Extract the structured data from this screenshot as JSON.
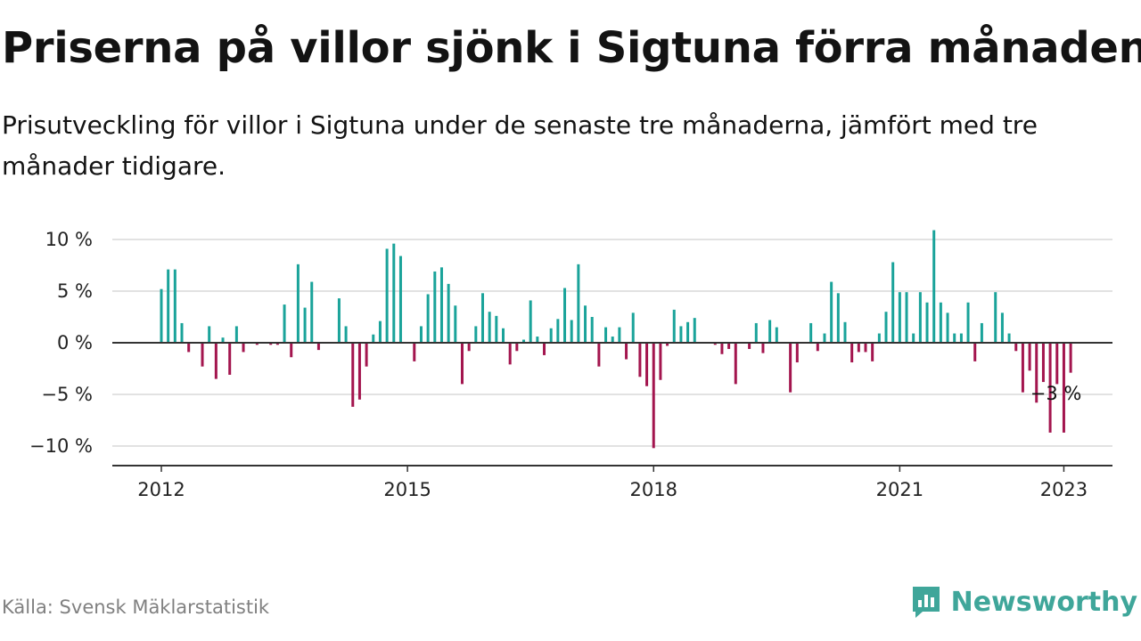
{
  "header": {
    "title": "Priserna på villor sjönk i Sigtuna förra månaden",
    "subtitle": "Prisutveckling för villor i Sigtuna under de senaste tre månaderna, jämfört med tre månader tidigare."
  },
  "footer": {
    "source": "Källa: Svensk Mäklarstatistik",
    "brand": "Newsworthy"
  },
  "colors": {
    "positive": "#1aa39a",
    "negative": "#a3154e",
    "grid": "#d9d9d9",
    "zero_line": "#333333",
    "brand": "#3fa69a"
  },
  "chart_data": {
    "type": "bar",
    "ylim": [
      -12,
      12
    ],
    "yticks": [
      {
        "value": 10,
        "label": "10 %"
      },
      {
        "value": 5,
        "label": "5 %"
      },
      {
        "value": 0,
        "label": "0 %"
      },
      {
        "value": -5,
        "label": "−5 %"
      },
      {
        "value": -10,
        "label": "−10 %"
      }
    ],
    "xticks": [
      "2012",
      "2015",
      "2018",
      "2021",
      "2023"
    ],
    "start": "2012-01",
    "annotation": {
      "text": "−3 %",
      "date": "2022-12",
      "value": -3
    },
    "series": [
      {
        "values": [
          5.2,
          7.1,
          7.1,
          1.9,
          -0.9,
          0,
          -2.3,
          1.6,
          -3.5,
          0.5,
          -3.1,
          1.6,
          -0.9,
          0,
          -0.2,
          0,
          -0.2,
          -0.2,
          3.7,
          -1.4,
          7.6,
          3.4,
          5.9,
          -0.7,
          0,
          0,
          4.3,
          1.6,
          -6.2,
          -5.5,
          -2.3,
          0.8,
          2.1,
          9.1,
          9.6,
          8.4,
          0,
          -1.8,
          1.6,
          4.7,
          6.9,
          7.3,
          5.7,
          3.6,
          -4.0,
          -0.8,
          1.6,
          4.8,
          3.0,
          2.6,
          1.4,
          -2.1,
          -0.8,
          0.3,
          4.1,
          0.6,
          -1.2,
          1.4,
          2.3,
          5.3,
          2.2,
          7.6,
          3.6,
          2.5,
          -2.3,
          1.5,
          0.6,
          1.5,
          -1.6,
          2.9,
          -3.3,
          -4.2,
          -10.2,
          -3.6,
          -0.3,
          3.2,
          1.6,
          2.0,
          2.4,
          0,
          0,
          -0.2,
          -1.1,
          -0.6,
          -4.0,
          0,
          -0.6,
          1.9,
          -1.0,
          2.2,
          1.5,
          0,
          -4.8,
          -1.9,
          0,
          1.9,
          -0.8,
          0.9,
          5.9,
          4.8,
          2.0,
          -1.9,
          -0.9,
          -0.9,
          -1.8,
          0.9,
          3.0,
          7.8,
          4.9,
          4.9,
          0.9,
          4.9,
          3.9,
          10.9,
          3.9,
          2.9,
          0.9,
          0.9,
          3.9,
          -1.8,
          1.9,
          0,
          4.9,
          2.9,
          0.9,
          -0.8,
          -4.8,
          -2.7,
          -5.8,
          -3.8,
          -8.7,
          -4.0,
          -8.7,
          -2.9
        ]
      }
    ]
  }
}
